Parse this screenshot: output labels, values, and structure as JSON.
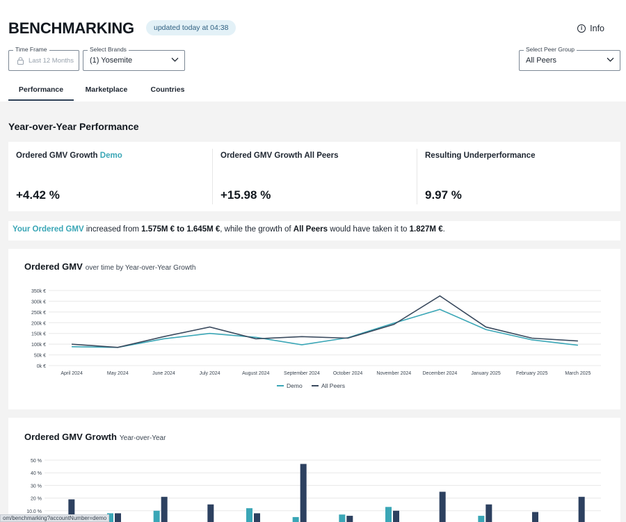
{
  "header": {
    "title": "BENCHMARKING",
    "updated": "updated today at 04:38",
    "info_label": "Info"
  },
  "filters": {
    "time_frame": {
      "legend": "Time Frame",
      "value": "Last 12 Months"
    },
    "brands": {
      "legend": "Select Brands",
      "value": "(1) Yosemite"
    },
    "peer_group": {
      "legend": "Select Peer Group",
      "value": "All Peers"
    }
  },
  "tabs": [
    {
      "label": "Performance",
      "active": true
    },
    {
      "label": "Marketplace",
      "active": false
    },
    {
      "label": "Countries",
      "active": false
    }
  ],
  "section_title": "Year-over-Year Performance",
  "kpis": [
    {
      "label": "Ordered GMV Growth",
      "accent": "Demo",
      "value": "+4.42 %"
    },
    {
      "label": "Ordered GMV Growth All Peers",
      "accent": "",
      "value": "+15.98 %"
    },
    {
      "label": "Resulting Underperformance",
      "accent": "",
      "value": "9.97 %"
    }
  ],
  "summary": {
    "p1": "Your Ordered GMV",
    "p2": " increased from ",
    "p3": "1.575M € to 1.645M €",
    "p4": ", while the growth of ",
    "p5": "All Peers",
    "p6": " would have taken it to ",
    "p7": "1.827M €",
    "p8": "."
  },
  "colors": {
    "demo": "#3aa6b6",
    "peers": "#3a4a5e",
    "bar_peers": "#2d4160",
    "accent": "#3aa6b6"
  },
  "chart_data": [
    {
      "type": "line",
      "title": "Ordered GMV",
      "subtitle": "over time by Year-over-Year Growth",
      "categories": [
        "April 2024",
        "May 2024",
        "June 2024",
        "July 2024",
        "August 2024",
        "September 2024",
        "October 2024",
        "November 2024",
        "December 2024",
        "January 2025",
        "February 2025",
        "March 2025"
      ],
      "y_ticks": [
        "0k €",
        "50k €",
        "100k €",
        "150k €",
        "200k €",
        "250k €",
        "300k €",
        "350k €"
      ],
      "ylim": [
        0,
        350
      ],
      "series": [
        {
          "name": "Demo",
          "values": [
            88,
            85,
            125,
            150,
            132,
            97,
            130,
            198,
            262,
            168,
            120,
            95
          ]
        },
        {
          "name": "All Peers",
          "values": [
            100,
            85,
            135,
            180,
            125,
            135,
            128,
            192,
            325,
            180,
            128,
            115
          ]
        }
      ],
      "legend": "bottom-center",
      "grid": true
    },
    {
      "type": "bar",
      "title": "Ordered GMV Growth",
      "subtitle": "Year-over-Year",
      "y_ticks": [
        "10.0 %",
        "20 %",
        "30 %",
        "40 %",
        "50 %"
      ],
      "ylim": [
        0,
        50
      ],
      "series": [
        {
          "name": "Demo",
          "values": [
            null,
            8,
            10,
            null,
            12,
            5,
            7,
            13,
            null,
            6,
            null,
            null
          ]
        },
        {
          "name": "All Peers",
          "values": [
            19,
            8,
            21,
            15,
            8,
            47,
            6,
            10,
            25,
            15,
            9,
            21
          ]
        }
      ],
      "grid": true
    }
  ],
  "status_url": "om/benchmarking?accountNumber=demo"
}
